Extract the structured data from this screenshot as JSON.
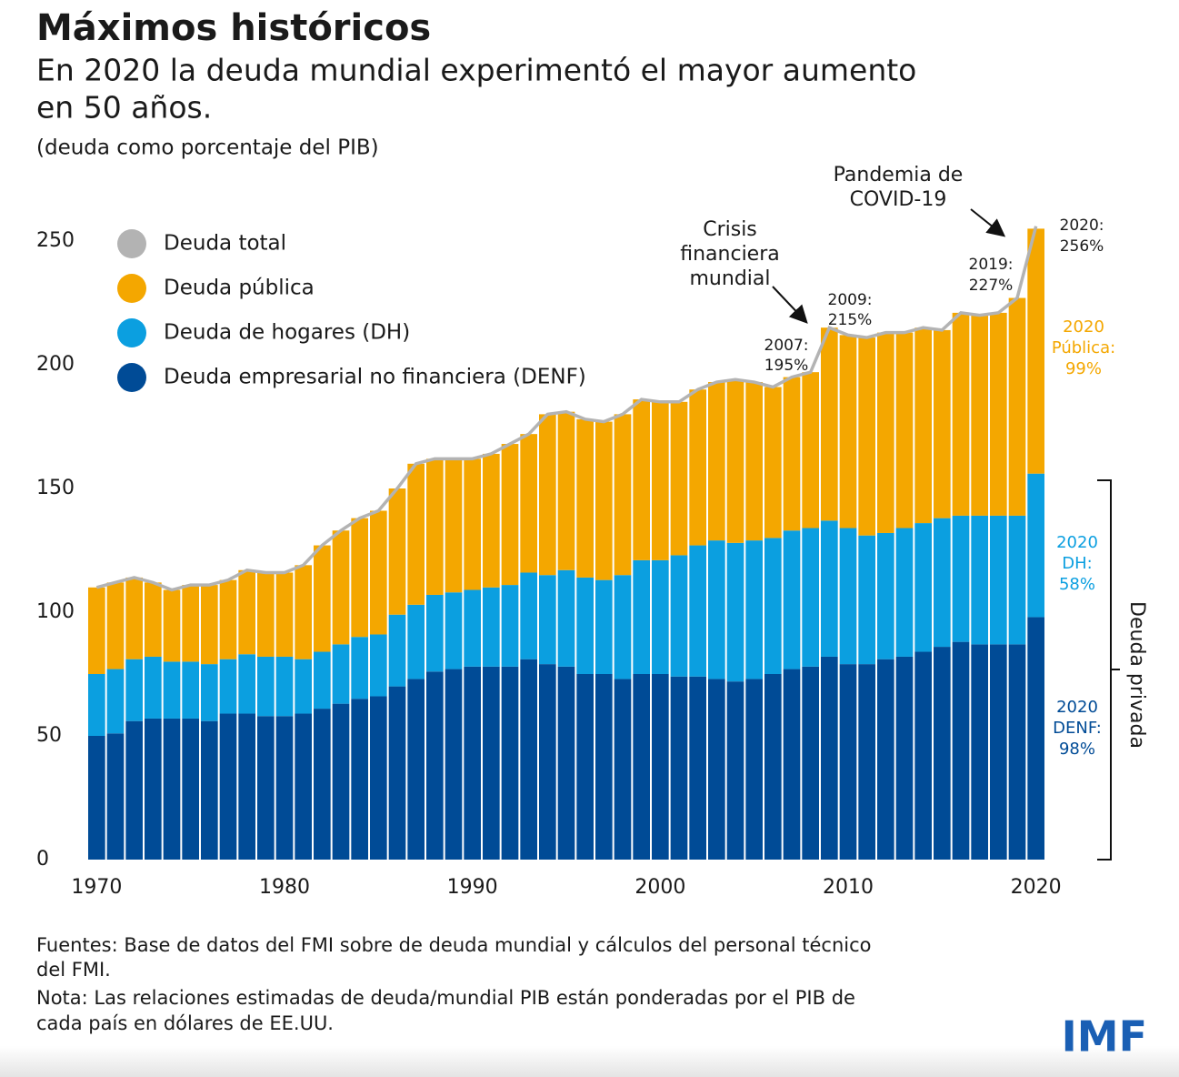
{
  "chart_data": {
    "type": "stacked_bar",
    "title": "Máximos históricos",
    "subtitle": [
      "En 2020 la deuda mundial experimentó el mayor aumento",
      "en 50 años."
    ],
    "unit_note": "(deuda como porcentaje del PIB)",
    "x": [
      1970,
      1971,
      1972,
      1973,
      1974,
      1975,
      1976,
      1977,
      1978,
      1979,
      1980,
      1981,
      1982,
      1983,
      1984,
      1985,
      1986,
      1987,
      1988,
      1989,
      1990,
      1991,
      1992,
      1993,
      1994,
      1995,
      1996,
      1997,
      1998,
      1999,
      2000,
      2001,
      2002,
      2003,
      2004,
      2005,
      2006,
      2007,
      2008,
      2009,
      2010,
      2011,
      2012,
      2013,
      2014,
      2015,
      2016,
      2017,
      2018,
      2019,
      2020
    ],
    "series": [
      {
        "name": "Deuda empresarial no financiera (DENF)",
        "color": "#004b96",
        "values": [
          50,
          51,
          56,
          57,
          57,
          57,
          56,
          59,
          59,
          58,
          58,
          59,
          61,
          63,
          65,
          66,
          70,
          73,
          76,
          77,
          78,
          78,
          78,
          81,
          79,
          78,
          75,
          75,
          73,
          75,
          75,
          74,
          74,
          73,
          72,
          73,
          75,
          77,
          78,
          82,
          79,
          79,
          81,
          82,
          84,
          86,
          88,
          87,
          87,
          87,
          98
        ]
      },
      {
        "name": "Deuda de hogares (DH)",
        "color": "#0b9fe0",
        "values": [
          25,
          26,
          25,
          25,
          23,
          23,
          23,
          22,
          24,
          24,
          24,
          22,
          23,
          24,
          25,
          25,
          29,
          30,
          31,
          31,
          31,
          32,
          33,
          35,
          36,
          39,
          39,
          38,
          42,
          46,
          46,
          49,
          53,
          56,
          56,
          56,
          55,
          56,
          56,
          55,
          55,
          52,
          51,
          52,
          52,
          52,
          51,
          52,
          52,
          52,
          58
        ]
      },
      {
        "name": "Deuda pública",
        "color": "#f4a700",
        "values": [
          35,
          35,
          33,
          30,
          29,
          31,
          32,
          32,
          34,
          34,
          34,
          38,
          43,
          46,
          48,
          50,
          51,
          57,
          55,
          54,
          53,
          54,
          57,
          56,
          65,
          64,
          64,
          64,
          65,
          65,
          64,
          62,
          63,
          64,
          66,
          64,
          61,
          62,
          63,
          78,
          78,
          80,
          81,
          79,
          79,
          76,
          82,
          81,
          82,
          88,
          99
        ]
      },
      {
        "name": "Deuda total",
        "color": "#b3b3b3",
        "type": "line",
        "values": [
          110,
          112,
          114,
          112,
          109,
          111,
          111,
          113,
          117,
          116,
          116,
          119,
          127,
          133,
          138,
          141,
          150,
          160,
          162,
          162,
          162,
          164,
          168,
          172,
          180,
          181,
          178,
          177,
          180,
          186,
          185,
          185,
          190,
          193,
          194,
          193,
          191,
          195,
          197,
          215,
          212,
          211,
          213,
          213,
          215,
          214,
          221,
          220,
          221,
          227,
          256
        ]
      }
    ],
    "xlim": [
      1969.5,
      2020.5
    ],
    "xticks": [
      1970,
      1980,
      1990,
      2000,
      2010,
      2020
    ],
    "ylim": [
      0,
      260
    ],
    "yticks": [
      0,
      50,
      100,
      150,
      200,
      250
    ],
    "annotations": [
      {
        "lines": [
          "Crisis",
          "financiera",
          "mundial"
        ]
      },
      {
        "lines": [
          "Pandemia de",
          "COVID-19"
        ]
      },
      {
        "lines": [
          "2007:",
          "195%"
        ]
      },
      {
        "lines": [
          "2009:",
          "215%"
        ]
      },
      {
        "lines": [
          "2019:",
          "227%"
        ]
      },
      {
        "lines": [
          "2020:",
          "256%"
        ]
      },
      {
        "lines": [
          "2020",
          "Pública:",
          "99%"
        ]
      },
      {
        "lines": [
          "2020",
          "DH:",
          "58%"
        ]
      },
      {
        "lines": [
          "2020",
          "DENF:",
          "98%"
        ]
      },
      {
        "lines": [
          "Deuda privada"
        ]
      }
    ],
    "notes": [
      "Fuentes: Base de datos del FMI sobre de deuda mundial y cálculos del personal técnico",
      "del FMI.",
      "Nota: Las relaciones estimadas de deuda/mundial PIB están ponderadas por el PIB de",
      "cada país en dólares de EE.UU."
    ],
    "logo": "IMF"
  }
}
